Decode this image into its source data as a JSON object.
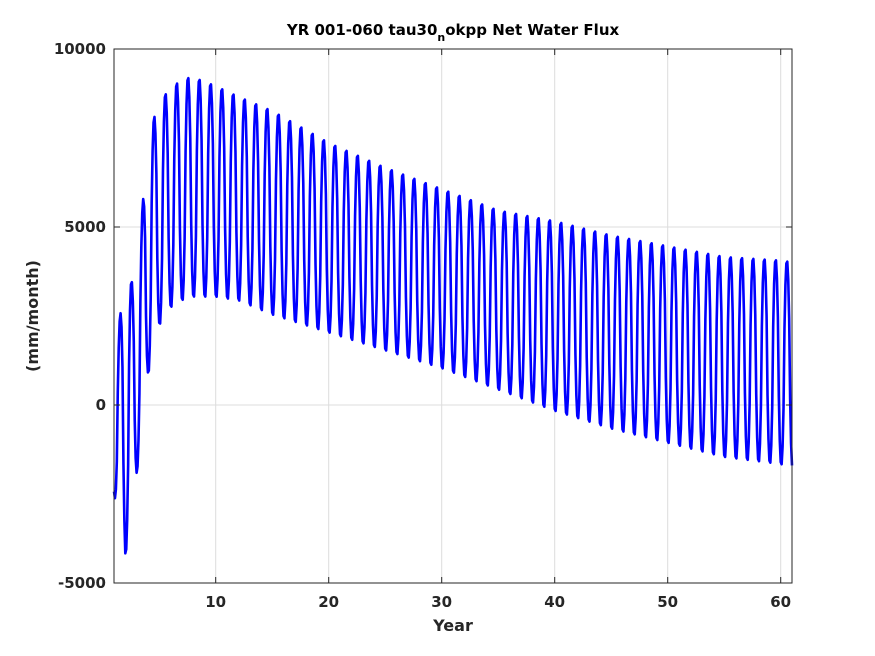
{
  "chart_data": {
    "type": "line",
    "title": {
      "prefix": "YR 001-060 tau30",
      "subscript": "n",
      "suffix": "okpp Net Water Flux"
    },
    "xlabel": "Year",
    "ylabel": "(mm/month)",
    "xlim": [
      1,
      61
    ],
    "ylim": [
      -5000,
      10000
    ],
    "xticks": [
      10,
      20,
      30,
      40,
      50,
      60
    ],
    "yticks": [
      -5000,
      0,
      5000,
      10000
    ],
    "grid": true,
    "series": [
      {
        "color": "#0000ff",
        "description_note": "monthly values, seasonal oscillation, one cycle per year",
        "envelope": {
          "year": [
            1,
            2,
            3,
            4,
            5,
            6,
            7,
            8,
            10,
            12,
            15,
            20,
            25,
            30,
            35,
            40,
            45,
            50,
            55,
            60,
            61
          ],
          "max": [
            1400,
            3500,
            3500,
            7500,
            8600,
            8900,
            9200,
            9250,
            9000,
            8700,
            8300,
            7400,
            6700,
            6100,
            5500,
            5200,
            4800,
            4500,
            4200,
            4100,
            4050
          ],
          "min": [
            -2500,
            -4300,
            -2000,
            800,
            2200,
            2700,
            2900,
            3000,
            3000,
            2900,
            2500,
            2000,
            1500,
            1000,
            400,
            -200,
            -700,
            -1100,
            -1500,
            -1700,
            -1800
          ]
        }
      }
    ]
  }
}
